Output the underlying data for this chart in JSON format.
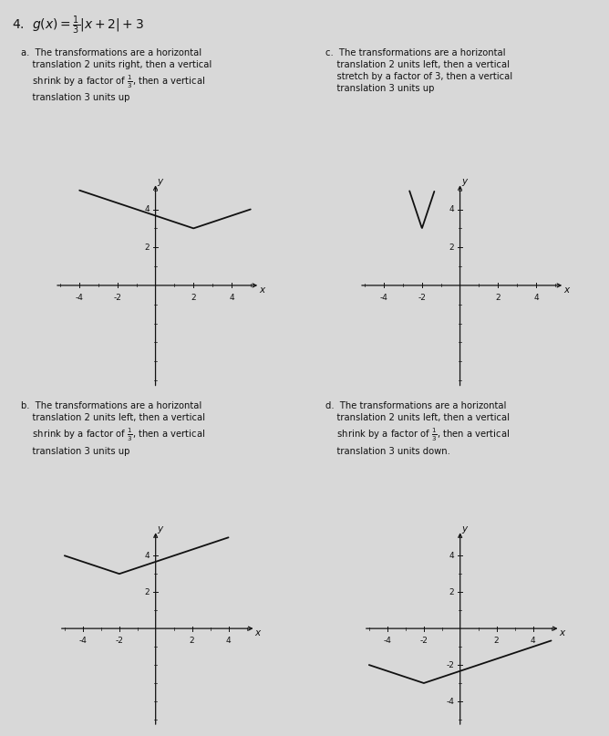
{
  "title_number": "4.",
  "title_formula": "$g(x) = \\frac{1}{3}|x+2|+3$",
  "background_color": "#d8d8d8",
  "graphs": [
    {
      "label": "a",
      "text_lines": [
        "The transformations are a horizontal",
        "translation 2 units right, then a vertical",
        "shrink by a factor of $\\frac{1}{3}$, then a vertical",
        "translation 3 units up"
      ],
      "vertex": [
        2,
        3
      ],
      "slope": 0.3333,
      "xlim": [
        -5,
        5
      ],
      "ylim": [
        -5,
        5
      ],
      "xtick_labels": [
        -4,
        -2,
        2,
        4
      ],
      "ytick_labels": [
        2,
        4
      ],
      "xlabel": "x",
      "ylabel": "y"
    },
    {
      "label": "c",
      "text_lines": [
        "The transformations are a horizontal",
        "translation 2 units left, then a vertical",
        "stretch by a factor of 3, then a vertical",
        "translation 3 units up"
      ],
      "vertex": [
        -2,
        3
      ],
      "slope": 3.0,
      "xlim": [
        -5,
        5
      ],
      "ylim": [
        -5,
        5
      ],
      "xtick_labels": [
        -4,
        -2,
        2,
        4
      ],
      "ytick_labels": [
        2,
        4
      ],
      "xlabel": "x",
      "ylabel": "y"
    },
    {
      "label": "b",
      "text_lines": [
        "The transformations are a horizontal",
        "translation 2 units left, then a vertical",
        "shrink by a factor of $\\frac{1}{3}$, then a vertical",
        "translation 3 units up"
      ],
      "vertex": [
        -2,
        3
      ],
      "slope": 0.3333,
      "xlim": [
        -5,
        5
      ],
      "ylim": [
        -5,
        5
      ],
      "xtick_labels": [
        -4,
        -2,
        2,
        4
      ],
      "ytick_labels": [
        2,
        4
      ],
      "xlabel": "x",
      "ylabel": "y"
    },
    {
      "label": "d",
      "text_lines": [
        "The transformations are a horizontal",
        "translation 2 units left, then a vertical",
        "shrink by a factor of $\\frac{1}{3}$, then a vertical",
        "translation 3 units down."
      ],
      "vertex": [
        -2,
        -3
      ],
      "slope": 0.3333,
      "xlim": [
        -5,
        5
      ],
      "ylim": [
        -5,
        5
      ],
      "xtick_labels": [
        -4,
        -2,
        2,
        4
      ],
      "ytick_labels": [
        -4,
        -2,
        2,
        4
      ],
      "xlabel": "x",
      "ylabel": "y"
    }
  ],
  "line_color": "#111111",
  "axis_color": "#111111",
  "text_color": "#111111",
  "font_size_text": 7.2,
  "font_size_tick": 6.5,
  "font_size_label": 7.5,
  "font_size_title": 10
}
